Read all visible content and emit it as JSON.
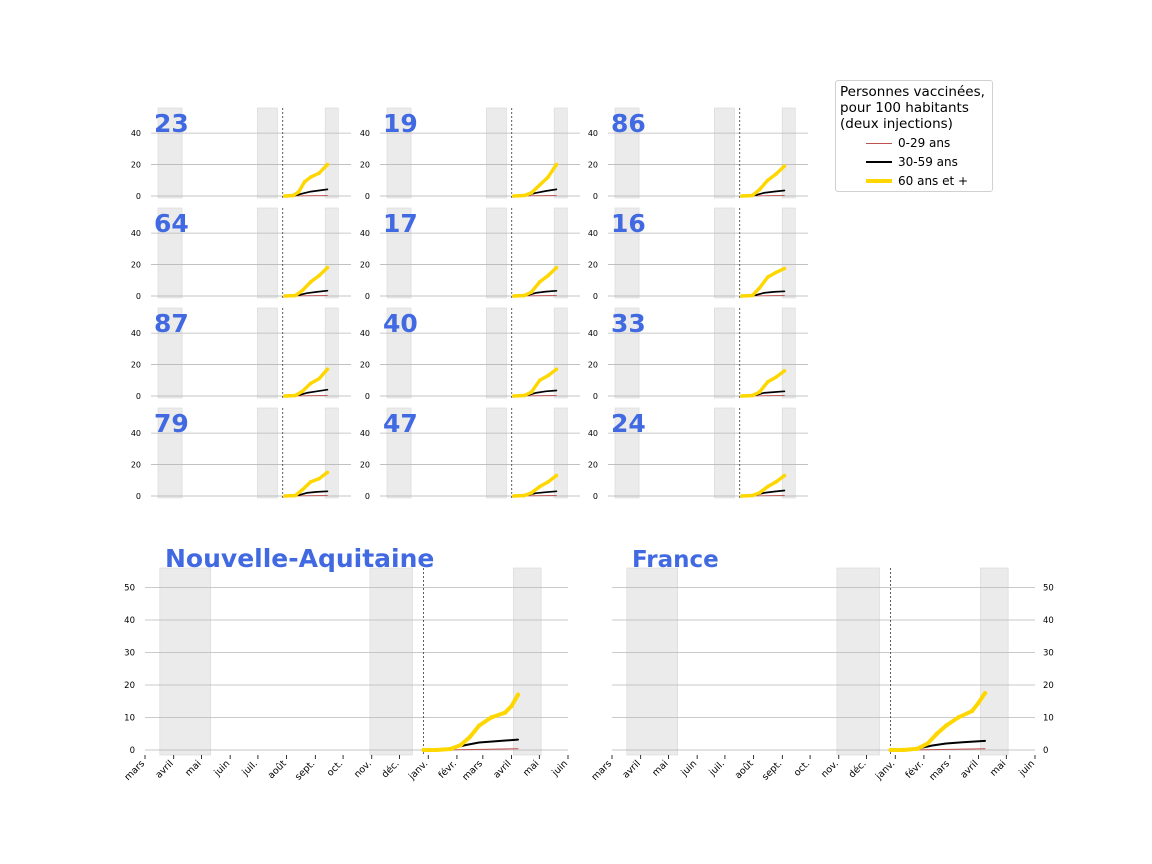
{
  "legend": {
    "title_lines": [
      "Personnes vaccinées,",
      "pour 100 habitants",
      "(deux injections)"
    ],
    "items": [
      {
        "label": "0-29 ans",
        "color": "#c0504d"
      },
      {
        "label": "30-59 ans",
        "color": "#000000"
      },
      {
        "label": "60 ans et +",
        "color": "#ffd700"
      }
    ]
  },
  "chart_data": [
    {
      "type": "line",
      "title": "23",
      "ylim": [
        0,
        56
      ],
      "yticks": [
        0,
        20,
        40
      ],
      "series": [
        {
          "name": "0-29 ans",
          "x": [
            "2021-01-01",
            "2021-01-20",
            "2021-02-10",
            "2021-03-01",
            "2021-03-20",
            "2021-04-08"
          ],
          "values": [
            0,
            0,
            0.1,
            0.2,
            0.3,
            0.4
          ]
        },
        {
          "name": "30-59 ans",
          "x": [
            "2021-01-01",
            "2021-01-20",
            "2021-02-10",
            "2021-03-01",
            "2021-03-20",
            "2021-04-08"
          ],
          "values": [
            0,
            0,
            1.5,
            2.8,
            3.5,
            4.2
          ]
        },
        {
          "name": "60 ans et +",
          "x": [
            "2021-01-01",
            "2021-01-20",
            "2021-02-01",
            "2021-02-15",
            "2021-03-01",
            "2021-03-20",
            "2021-04-08"
          ],
          "values": [
            0,
            0.3,
            2.5,
            9,
            12,
            14.5,
            20
          ]
        }
      ]
    },
    {
      "type": "line",
      "title": "19",
      "ylim": [
        0,
        56
      ],
      "yticks": [
        0,
        20,
        40
      ],
      "series": [
        {
          "name": "0-29 ans",
          "x": [
            "2021-01-01",
            "2021-02-01",
            "2021-03-01",
            "2021-04-08"
          ],
          "values": [
            0,
            0.1,
            0.2,
            0.4
          ]
        },
        {
          "name": "30-59 ans",
          "x": [
            "2021-01-01",
            "2021-02-01",
            "2021-02-20",
            "2021-03-15",
            "2021-04-08"
          ],
          "values": [
            0,
            0.5,
            2,
            3.2,
            4.2
          ]
        },
        {
          "name": "60 ans et +",
          "x": [
            "2021-01-01",
            "2021-01-25",
            "2021-02-10",
            "2021-03-01",
            "2021-03-20",
            "2021-04-08"
          ],
          "values": [
            0,
            0.3,
            2,
            7,
            12,
            20
          ]
        }
      ]
    },
    {
      "type": "line",
      "title": "86",
      "ylim": [
        0,
        56
      ],
      "yticks": [
        0,
        20,
        40
      ],
      "series": [
        {
          "name": "0-29 ans",
          "x": [
            "2021-01-01",
            "2021-02-01",
            "2021-03-01",
            "2021-04-08"
          ],
          "values": [
            0,
            0.1,
            0.2,
            0.4
          ]
        },
        {
          "name": "30-59 ans",
          "x": [
            "2021-01-01",
            "2021-02-01",
            "2021-02-20",
            "2021-03-15",
            "2021-04-08"
          ],
          "values": [
            0,
            0.5,
            2,
            2.8,
            3.5
          ]
        },
        {
          "name": "60 ans et +",
          "x": [
            "2021-01-01",
            "2021-01-25",
            "2021-02-10",
            "2021-03-01",
            "2021-03-20",
            "2021-04-08"
          ],
          "values": [
            0,
            0.3,
            4,
            10,
            14,
            19
          ]
        }
      ]
    },
    {
      "type": "line",
      "title": "64",
      "ylim": [
        0,
        56
      ],
      "yticks": [
        0,
        20,
        40
      ],
      "series": [
        {
          "name": "0-29 ans",
          "x": [
            "2021-01-01",
            "2021-02-01",
            "2021-03-01",
            "2021-04-08"
          ],
          "values": [
            0,
            0.1,
            0.2,
            0.4
          ]
        },
        {
          "name": "30-59 ans",
          "x": [
            "2021-01-01",
            "2021-02-01",
            "2021-02-20",
            "2021-03-15",
            "2021-04-08"
          ],
          "values": [
            0,
            0.5,
            1.8,
            2.6,
            3.4
          ]
        },
        {
          "name": "60 ans et +",
          "x": [
            "2021-01-01",
            "2021-01-25",
            "2021-02-10",
            "2021-03-01",
            "2021-03-20",
            "2021-04-08"
          ],
          "values": [
            0,
            0.3,
            3.5,
            9,
            13,
            18
          ]
        }
      ]
    },
    {
      "type": "line",
      "title": "17",
      "ylim": [
        0,
        56
      ],
      "yticks": [
        0,
        20,
        40
      ],
      "series": [
        {
          "name": "0-29 ans",
          "x": [
            "2021-01-01",
            "2021-02-01",
            "2021-03-01",
            "2021-04-08"
          ],
          "values": [
            0,
            0.1,
            0.2,
            0.4
          ]
        },
        {
          "name": "30-59 ans",
          "x": [
            "2021-01-01",
            "2021-02-01",
            "2021-02-20",
            "2021-03-15",
            "2021-04-08"
          ],
          "values": [
            0,
            0.5,
            2,
            2.8,
            3.3
          ]
        },
        {
          "name": "60 ans et +",
          "x": [
            "2021-01-01",
            "2021-01-25",
            "2021-02-10",
            "2021-03-01",
            "2021-03-20",
            "2021-04-08"
          ],
          "values": [
            0,
            0.3,
            2.5,
            9,
            13,
            18
          ]
        }
      ]
    },
    {
      "type": "line",
      "title": "16",
      "ylim": [
        0,
        56
      ],
      "yticks": [
        0,
        20,
        40
      ],
      "series": [
        {
          "name": "0-29 ans",
          "x": [
            "2021-01-01",
            "2021-02-01",
            "2021-03-01",
            "2021-04-08"
          ],
          "values": [
            0,
            0.1,
            0.2,
            0.4
          ]
        },
        {
          "name": "30-59 ans",
          "x": [
            "2021-01-01",
            "2021-02-01",
            "2021-02-20",
            "2021-03-15",
            "2021-04-08"
          ],
          "values": [
            0,
            0.5,
            2,
            2.6,
            3
          ]
        },
        {
          "name": "60 ans et +",
          "x": [
            "2021-01-01",
            "2021-01-25",
            "2021-02-10",
            "2021-03-01",
            "2021-03-20",
            "2021-04-08"
          ],
          "values": [
            0,
            0.3,
            5,
            12,
            15,
            17.5
          ]
        }
      ]
    },
    {
      "type": "line",
      "title": "87",
      "ylim": [
        0,
        56
      ],
      "yticks": [
        0,
        20,
        40
      ],
      "series": [
        {
          "name": "0-29 ans",
          "x": [
            "2021-01-01",
            "2021-02-01",
            "2021-03-01",
            "2021-04-08"
          ],
          "values": [
            0,
            0.1,
            0.2,
            0.4
          ]
        },
        {
          "name": "30-59 ans",
          "x": [
            "2021-01-01",
            "2021-02-01",
            "2021-02-20",
            "2021-03-15",
            "2021-04-08"
          ],
          "values": [
            0,
            0.5,
            2,
            3,
            4
          ]
        },
        {
          "name": "60 ans et +",
          "x": [
            "2021-01-01",
            "2021-01-25",
            "2021-02-10",
            "2021-03-01",
            "2021-03-20",
            "2021-04-08"
          ],
          "values": [
            0,
            0.3,
            3,
            8,
            11,
            17
          ]
        }
      ]
    },
    {
      "type": "line",
      "title": "40",
      "ylim": [
        0,
        56
      ],
      "yticks": [
        0,
        20,
        40
      ],
      "series": [
        {
          "name": "0-29 ans",
          "x": [
            "2021-01-01",
            "2021-02-01",
            "2021-03-01",
            "2021-04-08"
          ],
          "values": [
            0,
            0.1,
            0.2,
            0.4
          ]
        },
        {
          "name": "30-59 ans",
          "x": [
            "2021-01-01",
            "2021-02-01",
            "2021-02-20",
            "2021-03-15",
            "2021-04-08"
          ],
          "values": [
            0,
            0.5,
            2,
            3,
            3.5
          ]
        },
        {
          "name": "60 ans et +",
          "x": [
            "2021-01-01",
            "2021-01-25",
            "2021-02-10",
            "2021-03-01",
            "2021-03-20",
            "2021-04-08"
          ],
          "values": [
            0,
            0.3,
            2.5,
            10,
            13,
            17
          ]
        }
      ]
    },
    {
      "type": "line",
      "title": "33",
      "ylim": [
        0,
        56
      ],
      "yticks": [
        0,
        20,
        40
      ],
      "series": [
        {
          "name": "0-29 ans",
          "x": [
            "2021-01-01",
            "2021-02-01",
            "2021-03-01",
            "2021-04-08"
          ],
          "values": [
            0,
            0.1,
            0.2,
            0.4
          ]
        },
        {
          "name": "30-59 ans",
          "x": [
            "2021-01-01",
            "2021-02-01",
            "2021-02-20",
            "2021-03-15",
            "2021-04-08"
          ],
          "values": [
            0,
            0.5,
            2,
            2.5,
            3
          ]
        },
        {
          "name": "60 ans et +",
          "x": [
            "2021-01-01",
            "2021-01-25",
            "2021-02-10",
            "2021-03-01",
            "2021-03-20",
            "2021-04-08"
          ],
          "values": [
            0,
            0.3,
            2.5,
            9,
            12,
            16
          ]
        }
      ]
    },
    {
      "type": "line",
      "title": "79",
      "ylim": [
        0,
        56
      ],
      "yticks": [
        0,
        20,
        40
      ],
      "series": [
        {
          "name": "0-29 ans",
          "x": [
            "2021-01-01",
            "2021-02-01",
            "2021-03-01",
            "2021-04-08"
          ],
          "values": [
            0,
            0.1,
            0.2,
            0.4
          ]
        },
        {
          "name": "30-59 ans",
          "x": [
            "2021-01-01",
            "2021-02-01",
            "2021-02-20",
            "2021-03-15",
            "2021-04-08"
          ],
          "values": [
            0,
            0.5,
            2,
            2.6,
            3
          ]
        },
        {
          "name": "60 ans et +",
          "x": [
            "2021-01-01",
            "2021-01-25",
            "2021-02-10",
            "2021-03-01",
            "2021-03-20",
            "2021-04-08"
          ],
          "values": [
            0,
            0.3,
            4,
            9,
            11,
            15
          ]
        }
      ]
    },
    {
      "type": "line",
      "title": "47",
      "ylim": [
        0,
        56
      ],
      "yticks": [
        0,
        20,
        40
      ],
      "series": [
        {
          "name": "0-29 ans",
          "x": [
            "2021-01-01",
            "2021-02-01",
            "2021-03-01",
            "2021-04-08"
          ],
          "values": [
            0,
            0.1,
            0.2,
            0.4
          ]
        },
        {
          "name": "30-59 ans",
          "x": [
            "2021-01-01",
            "2021-02-01",
            "2021-02-20",
            "2021-03-15",
            "2021-04-08"
          ],
          "values": [
            0,
            0.5,
            1.8,
            2.4,
            3
          ]
        },
        {
          "name": "60 ans et +",
          "x": [
            "2021-01-01",
            "2021-01-25",
            "2021-02-10",
            "2021-03-01",
            "2021-03-20",
            "2021-04-08"
          ],
          "values": [
            0,
            0.3,
            2,
            6,
            9,
            13
          ]
        }
      ]
    },
    {
      "type": "line",
      "title": "24",
      "ylim": [
        0,
        56
      ],
      "yticks": [
        0,
        20,
        40
      ],
      "series": [
        {
          "name": "0-29 ans",
          "x": [
            "2021-01-01",
            "2021-02-01",
            "2021-03-01",
            "2021-04-08"
          ],
          "values": [
            0,
            0.1,
            0.2,
            0.4
          ]
        },
        {
          "name": "30-59 ans",
          "x": [
            "2021-01-01",
            "2021-02-01",
            "2021-02-20",
            "2021-03-15",
            "2021-04-08"
          ],
          "values": [
            0,
            0.5,
            2,
            2.8,
            3.5
          ]
        },
        {
          "name": "60 ans et +",
          "x": [
            "2021-01-01",
            "2021-01-25",
            "2021-02-10",
            "2021-03-01",
            "2021-03-20",
            "2021-04-08"
          ],
          "values": [
            0,
            0.3,
            2,
            6,
            9,
            13
          ]
        }
      ]
    },
    {
      "type": "line",
      "title": "Nouvelle-Aquitaine",
      "ylim": [
        0,
        56
      ],
      "yticks": [
        0,
        10,
        20,
        30,
        40,
        50
      ],
      "x_ticks": [
        "mars",
        "avril",
        "mai",
        "juin",
        "juil.",
        "août",
        "sept.",
        "oct.",
        "nov.",
        "déc.",
        "janv.",
        "févr.",
        "mars",
        "avril",
        "mai",
        "juin"
      ],
      "series": [
        {
          "name": "0-29 ans",
          "x": [
            "2020-12-27",
            "2021-02-01",
            "2021-03-01",
            "2021-04-08"
          ],
          "values": [
            0,
            0.05,
            0.2,
            0.4
          ]
        },
        {
          "name": "30-59 ans",
          "x": [
            "2020-12-27",
            "2021-01-25",
            "2021-02-10",
            "2021-02-25",
            "2021-03-15",
            "2021-04-08"
          ],
          "values": [
            0,
            0.4,
            1.5,
            2.3,
            2.7,
            3.2
          ]
        },
        {
          "name": "60 ans et +",
          "x": [
            "2020-12-27",
            "2021-01-10",
            "2021-01-25",
            "2021-02-05",
            "2021-02-15",
            "2021-02-25",
            "2021-03-10",
            "2021-03-25",
            "2021-04-01",
            "2021-04-08"
          ],
          "values": [
            0,
            0,
            0.3,
            1.5,
            4,
            7.5,
            10,
            11.5,
            13.5,
            17
          ]
        }
      ]
    },
    {
      "type": "line",
      "title": "France",
      "ylim": [
        0,
        56
      ],
      "yticks": [
        0,
        10,
        20,
        30,
        40,
        50
      ],
      "x_ticks": [
        "mars",
        "avril",
        "mai",
        "juin",
        "juil.",
        "août",
        "sept.",
        "oct.",
        "nov.",
        "déc.",
        "janv.",
        "févr.",
        "mars",
        "avril",
        "mai",
        "juin"
      ],
      "series": [
        {
          "name": "0-29 ans",
          "x": [
            "2020-12-27",
            "2021-02-01",
            "2021-03-01",
            "2021-04-08"
          ],
          "values": [
            0,
            0.05,
            0.2,
            0.4
          ]
        },
        {
          "name": "30-59 ans",
          "x": [
            "2020-12-27",
            "2021-01-25",
            "2021-02-10",
            "2021-02-25",
            "2021-03-15",
            "2021-04-08"
          ],
          "values": [
            0,
            0.4,
            1.4,
            2,
            2.4,
            2.8
          ]
        },
        {
          "name": "60 ans et +",
          "x": [
            "2020-12-27",
            "2021-01-10",
            "2021-01-25",
            "2021-02-05",
            "2021-02-15",
            "2021-02-25",
            "2021-03-10",
            "2021-03-25",
            "2021-04-01",
            "2021-04-08"
          ],
          "values": [
            0,
            0,
            0.4,
            2,
            5,
            7.5,
            10,
            12,
            14.5,
            17.5
          ]
        }
      ]
    }
  ]
}
